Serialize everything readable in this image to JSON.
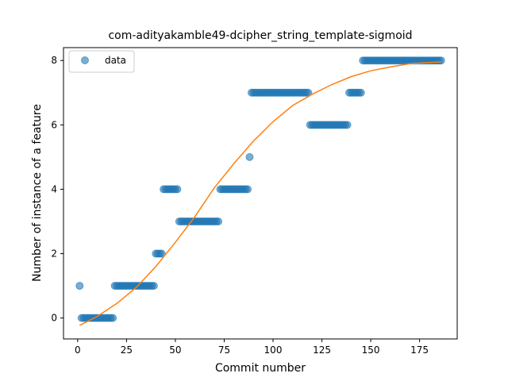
{
  "chart_data": {
    "type": "scatter",
    "title": "com-adityakamble49-dcipher_string_template-sigmoid",
    "xlabel": "Commit number",
    "ylabel": "Number of instance of a feature",
    "xlim": [
      -7.25,
      194.25
    ],
    "ylim": [
      -0.65,
      8.4
    ],
    "xticks": [
      0,
      25,
      50,
      75,
      100,
      125,
      150,
      175
    ],
    "yticks": [
      0,
      2,
      4,
      6,
      8
    ],
    "legend": {
      "position": "top-left",
      "entries": [
        "data"
      ]
    },
    "colors": {
      "data": "#1f77b4",
      "fit": "#ff7f0e"
    },
    "series": [
      {
        "name": "data",
        "kind": "scatter",
        "segments": [
          {
            "x_start": 1,
            "x_end": 1,
            "y": 1
          },
          {
            "x_start": 2,
            "x_end": 18,
            "y": 0
          },
          {
            "x_start": 19,
            "x_end": 39,
            "y": 1
          },
          {
            "x_start": 40,
            "x_end": 43,
            "y": 2
          },
          {
            "x_start": 44,
            "x_end": 51,
            "y": 4
          },
          {
            "x_start": 52,
            "x_end": 72,
            "y": 3
          },
          {
            "x_start": 73,
            "x_end": 87,
            "y": 4
          },
          {
            "x_start": 88,
            "x_end": 88,
            "y": 5
          },
          {
            "x_start": 89,
            "x_end": 118,
            "y": 7
          },
          {
            "x_start": 119,
            "x_end": 138,
            "y": 6
          },
          {
            "x_start": 139,
            "x_end": 145,
            "y": 7
          },
          {
            "x_start": 146,
            "x_end": 186,
            "y": 8
          }
        ]
      },
      {
        "name": "",
        "kind": "line",
        "x": [
          1,
          10,
          20,
          30,
          40,
          50,
          60,
          70,
          80,
          90,
          100,
          110,
          120,
          130,
          140,
          150,
          160,
          170,
          186
        ],
        "y": [
          -0.23,
          0.05,
          0.45,
          0.95,
          1.6,
          2.35,
          3.15,
          4.05,
          4.8,
          5.5,
          6.1,
          6.6,
          6.95,
          7.25,
          7.5,
          7.68,
          7.8,
          7.9,
          7.96
        ]
      }
    ]
  }
}
